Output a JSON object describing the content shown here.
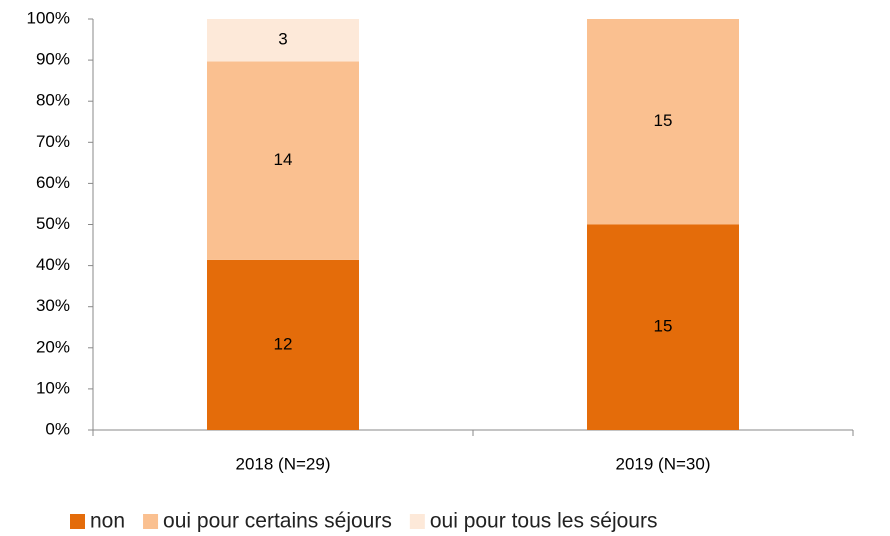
{
  "chart_data": {
    "type": "bar",
    "stack": "percent",
    "categories": [
      "2018 (N=29)",
      "2019 (N=30)"
    ],
    "series": [
      {
        "name": "non",
        "color": "#e46c0a",
        "values": [
          12,
          15
        ]
      },
      {
        "name": "oui pour certains séjours",
        "color": "#fac090",
        "values": [
          14,
          15
        ]
      },
      {
        "name": "oui pour tous les séjours",
        "color": "#fde9d9",
        "values": [
          3,
          null
        ]
      }
    ],
    "ylim": [
      0,
      100
    ],
    "yticks": [
      {
        "value": 0,
        "label": "0%"
      },
      {
        "value": 10,
        "label": "10%"
      },
      {
        "value": 20,
        "label": "20%"
      },
      {
        "value": 30,
        "label": "30%"
      },
      {
        "value": 40,
        "label": "40%"
      },
      {
        "value": 50,
        "label": "50%"
      },
      {
        "value": 60,
        "label": "60%"
      },
      {
        "value": 70,
        "label": "70%"
      },
      {
        "value": 80,
        "label": "80%"
      },
      {
        "value": 90,
        "label": "90%"
      },
      {
        "value": 100,
        "label": "100%"
      }
    ],
    "grid": false,
    "legend": "bottom"
  }
}
